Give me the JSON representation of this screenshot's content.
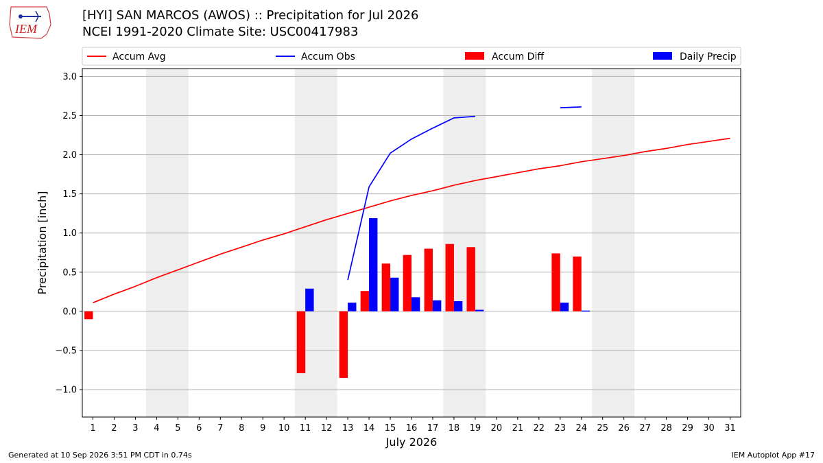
{
  "header": {
    "title_line1": "[HYI] SAN MARCOS (AWOS) :: Precipitation for Jul 2026",
    "title_line2": "NCEI 1991-2020 Climate Site: USC00417983",
    "logo_text": "IEM"
  },
  "footer": {
    "generated": "Generated at 10 Sep 2026 3:51 PM CDT in 0.74s",
    "app": "IEM Autoplot App #17"
  },
  "colors": {
    "accum_avg": "#ff0000",
    "accum_obs": "#0000ff",
    "accum_diff": "#ff0000",
    "daily_precip": "#0000ff",
    "weekend_shade": "#eeeeee",
    "grid": "#b0b0b0"
  },
  "chart_data": {
    "type": "bar",
    "xlabel": "July 2026",
    "ylabel": "Precipitation [inch]",
    "ylim": [
      -1.35,
      3.1
    ],
    "yticks": [
      "−1.0",
      "−0.5",
      "0.0",
      "0.5",
      "1.0",
      "1.5",
      "2.0",
      "2.5",
      "3.0"
    ],
    "ytick_values": [
      -1.0,
      -0.5,
      0.0,
      0.5,
      1.0,
      1.5,
      2.0,
      2.5,
      3.0
    ],
    "days": [
      1,
      2,
      3,
      4,
      5,
      6,
      7,
      8,
      9,
      10,
      11,
      12,
      13,
      14,
      15,
      16,
      17,
      18,
      19,
      20,
      21,
      22,
      23,
      24,
      25,
      26,
      27,
      28,
      29,
      30,
      31
    ],
    "weekend_spans": [
      [
        4,
        5
      ],
      [
        11,
        12
      ],
      [
        18,
        19
      ],
      [
        25,
        26
      ]
    ],
    "grid": "y",
    "legend": {
      "placement": "top",
      "entries": [
        "Accum Avg",
        "Accum Obs",
        "Accum Diff",
        "Daily Precip"
      ]
    },
    "series": [
      {
        "name": "Accum Avg",
        "kind": "line",
        "values": [
          0.11,
          0.22,
          0.32,
          0.43,
          0.53,
          0.63,
          0.73,
          0.82,
          0.91,
          0.99,
          1.08,
          1.17,
          1.25,
          1.33,
          1.41,
          1.48,
          1.54,
          1.61,
          1.67,
          1.72,
          1.77,
          1.82,
          1.86,
          1.91,
          1.95,
          1.99,
          2.04,
          2.08,
          2.13,
          2.17,
          2.21
        ]
      },
      {
        "name": "Accum Obs",
        "kind": "line",
        "values": [
          null,
          null,
          null,
          null,
          null,
          null,
          null,
          null,
          null,
          null,
          null,
          null,
          0.4,
          1.59,
          2.02,
          2.2,
          2.34,
          2.47,
          2.49,
          null,
          null,
          null,
          2.6,
          2.61,
          null,
          null,
          null,
          null,
          null,
          null,
          null
        ]
      },
      {
        "name": "Accum Diff",
        "kind": "bar",
        "values": [
          -0.1,
          null,
          null,
          null,
          null,
          null,
          null,
          null,
          null,
          null,
          -0.79,
          null,
          -0.85,
          0.26,
          0.61,
          0.72,
          0.8,
          0.86,
          0.82,
          null,
          null,
          null,
          0.74,
          0.7,
          null,
          null,
          null,
          null,
          null,
          null,
          null
        ]
      },
      {
        "name": "Daily Precip",
        "kind": "bar",
        "values": [
          null,
          null,
          null,
          null,
          null,
          null,
          null,
          null,
          null,
          null,
          0.29,
          null,
          0.11,
          1.19,
          0.43,
          0.18,
          0.14,
          0.13,
          0.02,
          null,
          null,
          null,
          0.11,
          0.01,
          null,
          null,
          null,
          null,
          null,
          null,
          null
        ]
      }
    ]
  }
}
